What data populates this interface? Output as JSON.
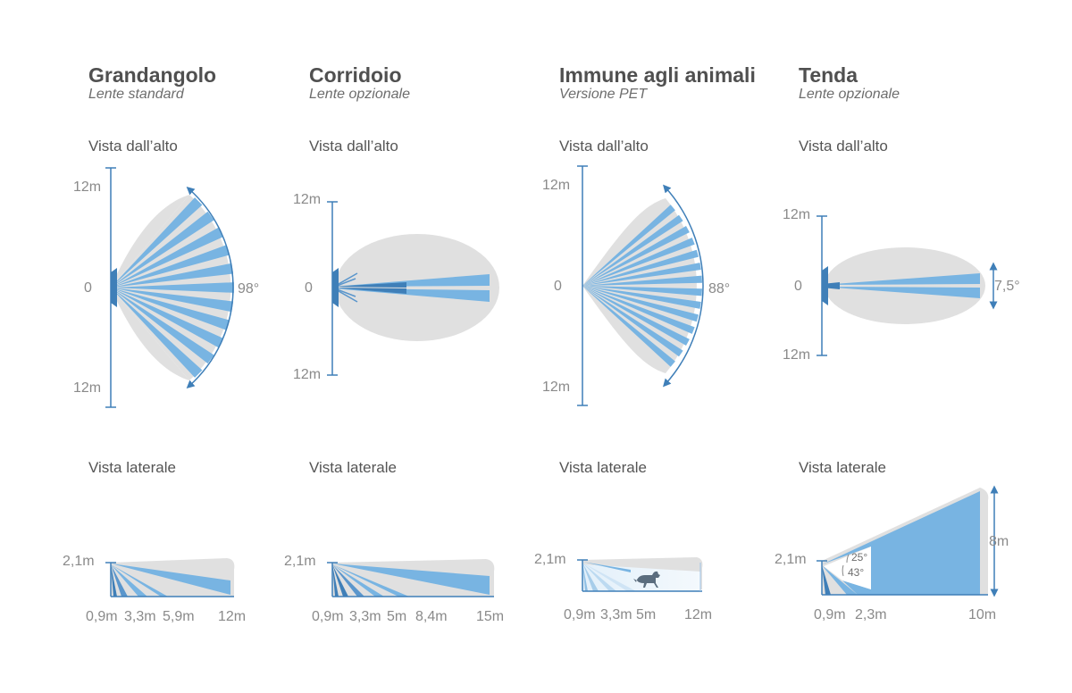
{
  "colors": {
    "beam": "#78b4e2",
    "beam_dark": "#3f7fb8",
    "zone": "#e0e0e0",
    "axis": "#3f7fb8",
    "label": "#8a8a8a"
  },
  "panels": [
    {
      "title": "Grandangolo",
      "subtitle": "Lente standard",
      "top_label": "Vista dall’alto",
      "side_label": "Vista laterale",
      "top": {
        "y_labels": [
          "12m",
          "0",
          "12m"
        ],
        "angle": "98°",
        "beams": 11
      },
      "side": {
        "height": "2,1m",
        "distances": [
          "0,9m",
          "3,3m",
          "5,9m",
          "12m"
        ]
      }
    },
    {
      "title": "Corridoio",
      "subtitle": "Lente opzionale",
      "top_label": "Vista dall’alto",
      "side_label": "Vista laterale",
      "top": {
        "y_labels": [
          "12m",
          "0",
          "12m"
        ]
      },
      "side": {
        "height": "2,1m",
        "distances": [
          "0,9m",
          "3,3m",
          "5m",
          "8,4m",
          "15m"
        ]
      }
    },
    {
      "title": "Immune agli animali",
      "subtitle": "Versione PET",
      "top_label": "Vista dall’alto",
      "side_label": "Vista laterale",
      "top": {
        "y_labels": [
          "12m",
          "0",
          "12m"
        ],
        "angle": "88°",
        "beams": 14
      },
      "side": {
        "height": "2,1m",
        "distances": [
          "0,9m",
          "3,3m",
          "5m",
          "12m"
        ],
        "icon": "dog-icon"
      }
    },
    {
      "title": "Tenda",
      "subtitle": "Lente opzionale",
      "top_label": "Vista dall’alto",
      "side_label": "Vista laterale",
      "top": {
        "y_labels": [
          "12m",
          "0",
          "12m"
        ],
        "angle": "7,5°"
      },
      "side": {
        "height": "2,1m",
        "height2": "8m",
        "distances": [
          "0,9m",
          "2,3m",
          "10m"
        ],
        "angles": [
          "25°",
          "43°"
        ]
      }
    }
  ]
}
